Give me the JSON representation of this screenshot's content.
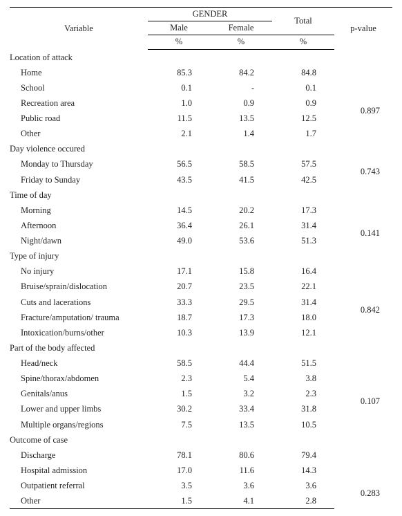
{
  "header": {
    "variable": "Variable",
    "gender": "GENDER",
    "male": "Male",
    "female": "Female",
    "total": "Total",
    "pvalue": "p-value",
    "pct": "%"
  },
  "sections": [
    {
      "title": "Location of attack",
      "pvalue": "0.897",
      "pIndex": 3,
      "rows": [
        {
          "label": "Home",
          "male": "85.3",
          "female": "84.2",
          "total": "84.8"
        },
        {
          "label": "School",
          "male": "0.1",
          "female": "-",
          "total": "0.1"
        },
        {
          "label": "Recreation area",
          "male": "1.0",
          "female": "0.9",
          "total": "0.9"
        },
        {
          "label": "Public road",
          "male": "11.5",
          "female": "13.5",
          "total": "12.5"
        },
        {
          "label": "Other",
          "male": "2.1",
          "female": "1.4",
          "total": "1.7"
        }
      ]
    },
    {
      "title": "Day violence occured",
      "pvalue": "0.743",
      "pIndex": 1,
      "rows": [
        {
          "label": "Monday to Thursday",
          "male": "56.5",
          "female": "58.5",
          "total": "57.5"
        },
        {
          "label": "Friday to Sunday",
          "male": "43.5",
          "female": "41.5",
          "total": "42.5"
        }
      ]
    },
    {
      "title": "Time of day",
      "pvalue": "0.141",
      "pIndex": 2,
      "rows": [
        {
          "label": "Morning",
          "male": "14.5",
          "female": "20.2",
          "total": "17.3"
        },
        {
          "label": "Afternoon",
          "male": "36.4",
          "female": "26.1",
          "total": "31.4"
        },
        {
          "label": "Night/dawn",
          "male": "49.0",
          "female": "53.6",
          "total": "51.3"
        }
      ]
    },
    {
      "title": "Type of injury",
      "pvalue": "0.842",
      "pIndex": 3,
      "rows": [
        {
          "label": "No injury",
          "male": "17.1",
          "female": "15.8",
          "total": "16.4"
        },
        {
          "label": "Bruise/sprain/dislocation",
          "male": "20.7",
          "female": "23.5",
          "total": "22.1"
        },
        {
          "label": "Cuts and lacerations",
          "male": "33.3",
          "female": "29.5",
          "total": "31.4"
        },
        {
          "label": "Fracture/amputation/ trauma",
          "male": "18.7",
          "female": "17.3",
          "total": "18.0"
        },
        {
          "label": "Intoxication/burns/other",
          "male": "10.3",
          "female": "13.9",
          "total": "12.1"
        }
      ]
    },
    {
      "title": "Part of the body affected",
      "pvalue": "0.107",
      "pIndex": 3,
      "rows": [
        {
          "label": "Head/neck",
          "male": "58.5",
          "female": "44.4",
          "total": "51.5"
        },
        {
          "label": "Spine/thorax/abdomen",
          "male": "2.3",
          "female": "5.4",
          "total": "3.8"
        },
        {
          "label": "Genitals/anus",
          "male": "1.5",
          "female": "3.2",
          "total": "2.3"
        },
        {
          "label": "Lower and upper limbs",
          "male": "30.2",
          "female": "33.4",
          "total": "31.8"
        },
        {
          "label": "Multiple organs/regions",
          "male": "7.5",
          "female": "13.5",
          "total": "10.5"
        }
      ]
    },
    {
      "title": "Outcome of case",
      "pvalue": "0.283",
      "pIndex": 3,
      "rows": [
        {
          "label": "Discharge",
          "male": "78.1",
          "female": "80.6",
          "total": "79.4"
        },
        {
          "label": "Hospital admission",
          "male": "17.0",
          "female": "11.6",
          "total": "14.3"
        },
        {
          "label": "Outpatient referral",
          "male": "3.5",
          "female": "3.6",
          "total": "3.6"
        },
        {
          "label": "Other",
          "male": "1.5",
          "female": "4.1",
          "total": "2.8"
        }
      ]
    }
  ]
}
